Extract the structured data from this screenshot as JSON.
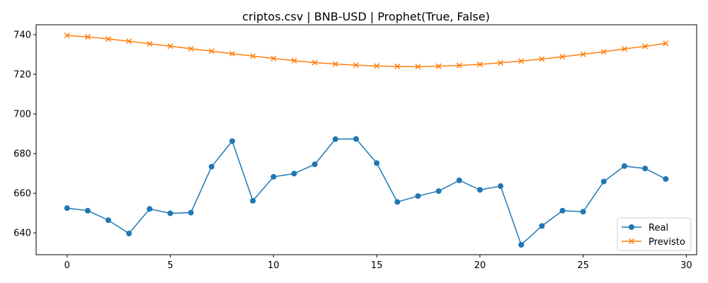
{
  "chart_data": {
    "type": "line",
    "title": "criptos.csv | BNB-USD | Prophet(True, False)",
    "xlabel": "",
    "ylabel": "",
    "xlim": [
      -1.5,
      30.5
    ],
    "ylim": [
      629,
      745
    ],
    "x_ticks": [
      0,
      5,
      10,
      15,
      20,
      25,
      30
    ],
    "y_ticks": [
      640,
      660,
      680,
      700,
      720,
      740
    ],
    "grid": false,
    "legend_position": "lower right",
    "x": [
      0,
      1,
      2,
      3,
      4,
      5,
      6,
      7,
      8,
      9,
      10,
      11,
      12,
      13,
      14,
      15,
      16,
      17,
      18,
      19,
      20,
      21,
      22,
      23,
      24,
      25,
      26,
      27,
      28,
      29
    ],
    "series": [
      {
        "name": "Real",
        "color": "#1f77b4",
        "marker": "circle",
        "values": [
          652.5,
          651.2,
          646.4,
          639.7,
          652.1,
          649.9,
          650.2,
          673.4,
          686.3,
          656.2,
          668.3,
          669.9,
          674.6,
          687.3,
          687.4,
          675.2,
          655.6,
          658.6,
          661.1,
          666.5,
          661.7,
          663.6,
          634.0,
          643.5,
          651.2,
          650.7,
          665.9,
          673.7,
          672.5,
          667.2
        ]
      },
      {
        "name": "Previsto",
        "color": "#ff7f0e",
        "marker": "x",
        "values": [
          739.6,
          738.9,
          737.8,
          736.7,
          735.4,
          734.2,
          732.9,
          731.7,
          730.4,
          729.2,
          728.0,
          726.9,
          725.9,
          725.2,
          724.6,
          724.2,
          724.0,
          723.9,
          724.1,
          724.5,
          725.0,
          725.8,
          726.7,
          727.7,
          728.9,
          730.1,
          731.4,
          732.8,
          734.1,
          735.6
        ]
      }
    ]
  }
}
